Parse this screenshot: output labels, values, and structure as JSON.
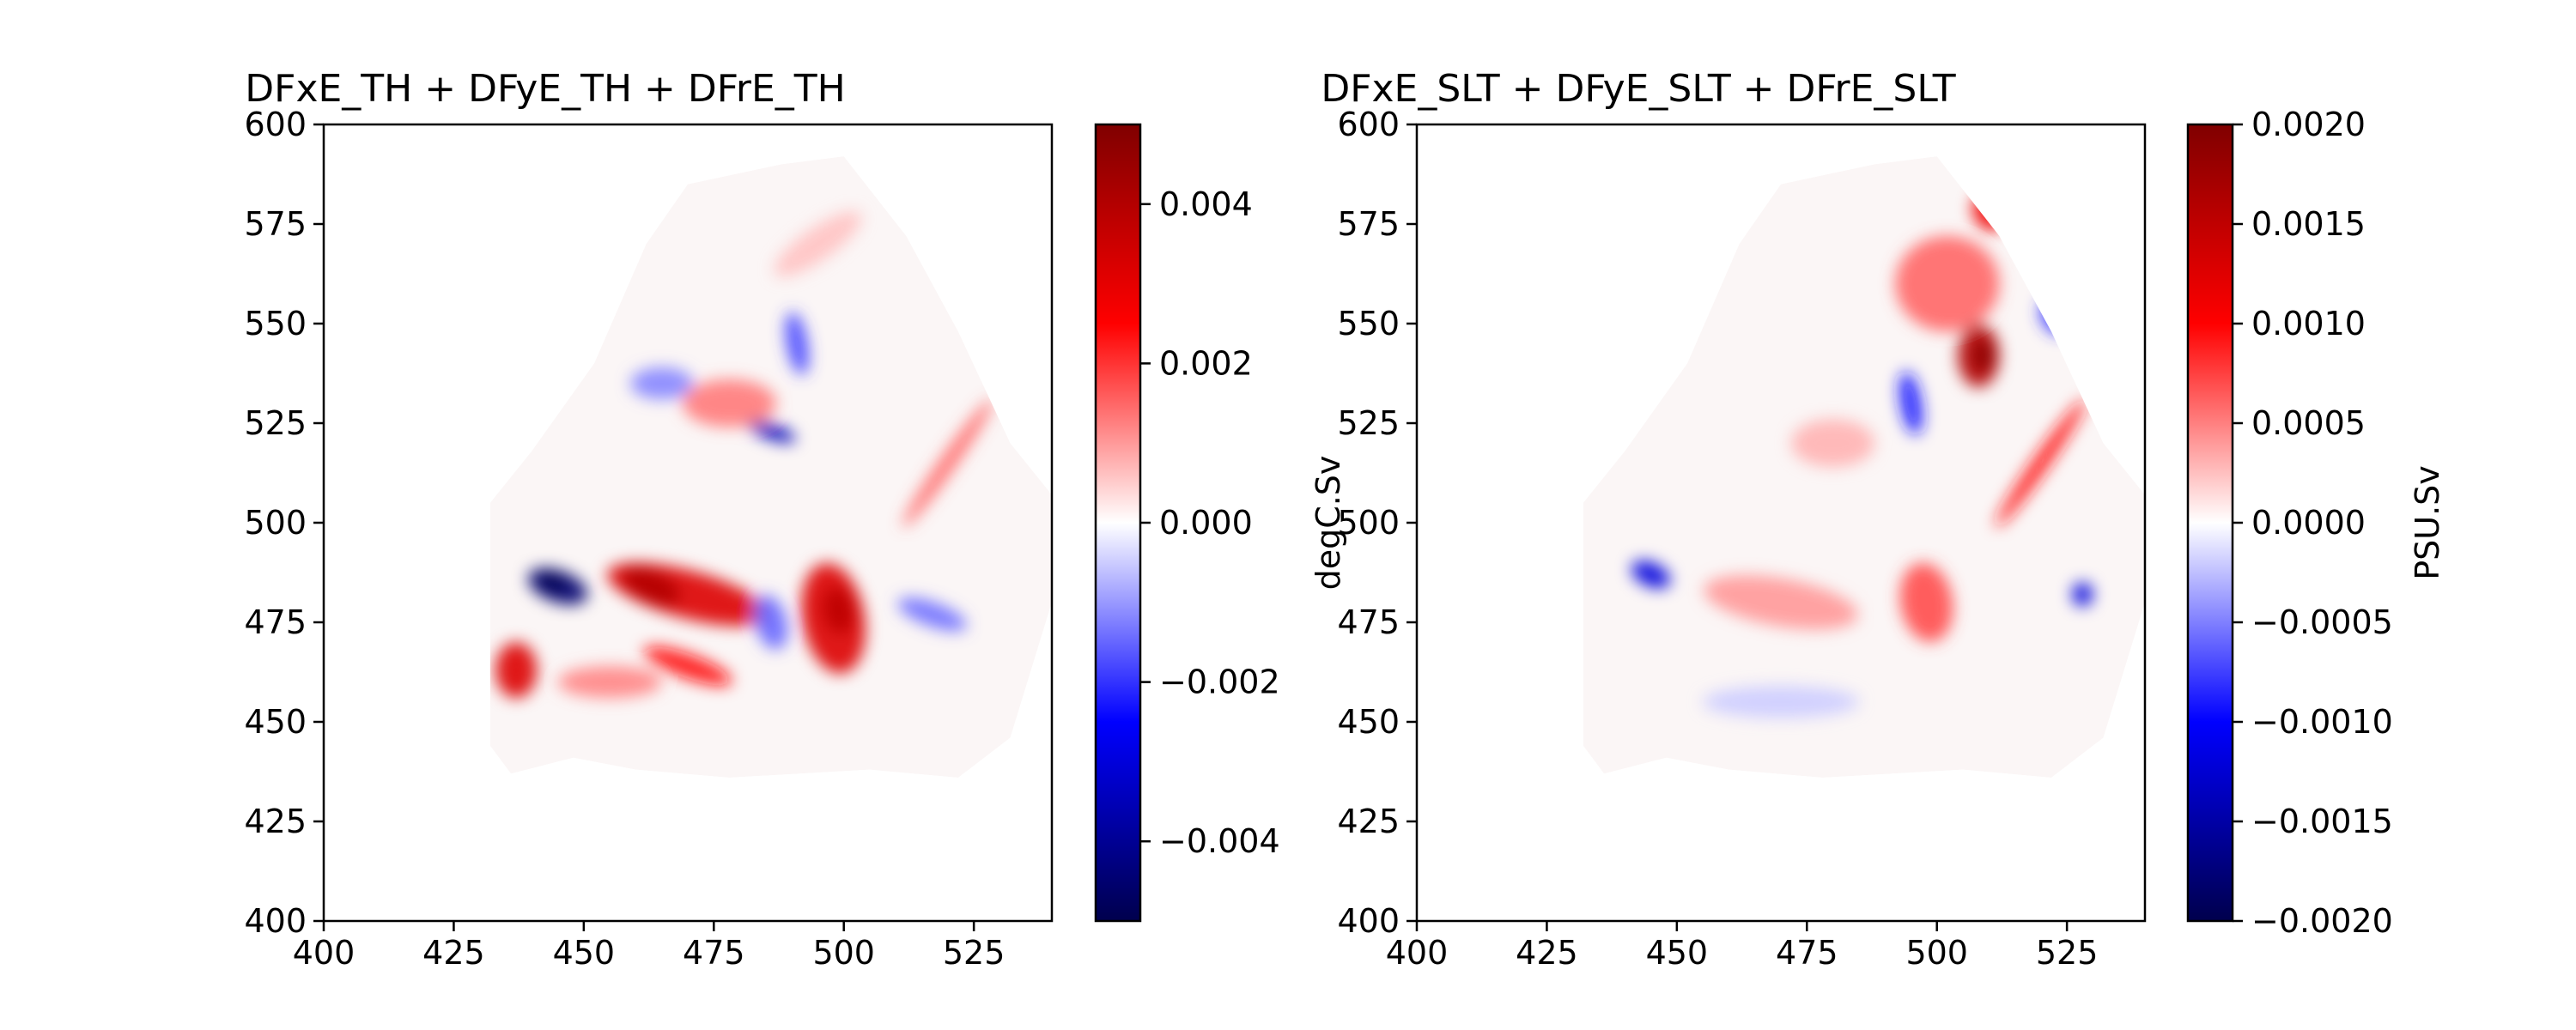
{
  "chart_data": [
    {
      "type": "heatmap",
      "title": "DFxE_TH + DFyE_TH + DFrE_TH",
      "xlim": [
        400,
        540
      ],
      "ylim": [
        400,
        600
      ],
      "xticks": [
        "400",
        "425",
        "450",
        "475",
        "500",
        "525"
      ],
      "yticks": [
        "400",
        "425",
        "450",
        "475",
        "500",
        "525",
        "550",
        "575",
        "600"
      ],
      "colormap": "seismic",
      "colorbar": {
        "label": "degC.Sv",
        "range": [
          -0.005,
          0.005
        ],
        "ticks": [
          "−0.004",
          "−0.002",
          "0.000",
          "0.002",
          "0.004"
        ],
        "tick_values": [
          -0.004,
          -0.002,
          0.0,
          0.002,
          0.004
        ]
      },
      "blobs": [
        {
          "x": 445,
          "y": 484,
          "rx": 6,
          "ry": 4,
          "rot": -20,
          "value": -0.0045
        },
        {
          "x": 444,
          "y": 485,
          "rx": 3,
          "ry": 2,
          "rot": -20,
          "value": -0.005
        },
        {
          "x": 470,
          "y": 482,
          "rx": 16,
          "ry": 6,
          "rot": -15,
          "value": 0.0032
        },
        {
          "x": 463,
          "y": 484,
          "rx": 6,
          "ry": 4,
          "rot": -25,
          "value": 0.004
        },
        {
          "x": 498,
          "y": 476,
          "rx": 6,
          "ry": 14,
          "rot": 10,
          "value": 0.0032
        },
        {
          "x": 499,
          "y": 478,
          "rx": 3,
          "ry": 6,
          "rot": 10,
          "value": 0.0038
        },
        {
          "x": 437,
          "y": 463,
          "rx": 4,
          "ry": 7,
          "rot": 0,
          "value": 0.0032
        },
        {
          "x": 470,
          "y": 464,
          "rx": 9,
          "ry": 3,
          "rot": -20,
          "value": 0.0024
        },
        {
          "x": 486,
          "y": 523,
          "rx": 5,
          "ry": 2,
          "rot": -20,
          "value": -0.0035
        },
        {
          "x": 491,
          "y": 545,
          "rx": 2,
          "ry": 8,
          "rot": 10,
          "value": -0.0018
        },
        {
          "x": 478,
          "y": 530,
          "rx": 9,
          "ry": 6,
          "rot": 0,
          "value": 0.0013
        },
        {
          "x": 465,
          "y": 535,
          "rx": 6,
          "ry": 4,
          "rot": 0,
          "value": -0.0012
        },
        {
          "x": 517,
          "y": 477,
          "rx": 7,
          "ry": 3,
          "rot": -20,
          "value": -0.0014
        },
        {
          "x": 486,
          "y": 475,
          "rx": 3,
          "ry": 7,
          "rot": 15,
          "value": -0.0015
        },
        {
          "x": 455,
          "y": 460,
          "rx": 10,
          "ry": 4,
          "rot": 0,
          "value": 0.0012
        },
        {
          "x": 520,
          "y": 515,
          "rx": 15,
          "ry": 2,
          "rot": 55,
          "value": 0.0015
        },
        {
          "x": 495,
          "y": 570,
          "rx": 10,
          "ry": 4,
          "rot": 35,
          "value": 0.0006
        }
      ]
    },
    {
      "type": "heatmap",
      "title": "DFxE_SLT + DFyE_SLT + DFrE_SLT",
      "xlim": [
        400,
        540
      ],
      "ylim": [
        400,
        600
      ],
      "xticks": [
        "400",
        "425",
        "450",
        "475",
        "500",
        "525"
      ],
      "yticks": [
        "400",
        "425",
        "450",
        "475",
        "500",
        "525",
        "550",
        "575",
        "600"
      ],
      "colormap": "seismic",
      "colorbar": {
        "label": "PSU.Sv",
        "range": [
          -0.002,
          0.002
        ],
        "ticks": [
          "−0.0020",
          "−0.0015",
          "−0.0010",
          "−0.0005",
          "0.0000",
          "0.0005",
          "0.0010",
          "0.0015",
          "0.0020"
        ],
        "tick_values": [
          -0.002,
          -0.0015,
          -0.001,
          -0.0005,
          0.0,
          0.0005,
          0.001,
          0.0015,
          0.002
        ]
      },
      "blobs": [
        {
          "x": 508,
          "y": 542,
          "rx": 4,
          "ry": 8,
          "rot": 0,
          "value": 0.0016
        },
        {
          "x": 509,
          "y": 542,
          "rx": 2,
          "ry": 4,
          "rot": 0,
          "value": 0.0019
        },
        {
          "x": 502,
          "y": 560,
          "rx": 10,
          "ry": 12,
          "rot": 0,
          "value": 0.0006
        },
        {
          "x": 510,
          "y": 578,
          "rx": 3,
          "ry": 5,
          "rot": 30,
          "value": 0.0011
        },
        {
          "x": 498,
          "y": 480,
          "rx": 5,
          "ry": 10,
          "rot": 10,
          "value": 0.0007
        },
        {
          "x": 445,
          "y": 487,
          "rx": 4,
          "ry": 3,
          "rot": -25,
          "value": -0.0012
        },
        {
          "x": 495,
          "y": 530,
          "rx": 2,
          "ry": 8,
          "rot": 10,
          "value": -0.0009
        },
        {
          "x": 523,
          "y": 552,
          "rx": 3,
          "ry": 5,
          "rot": 30,
          "value": -0.0008
        },
        {
          "x": 528,
          "y": 482,
          "rx": 2,
          "ry": 3,
          "rot": 0,
          "value": -0.0012
        },
        {
          "x": 520,
          "y": 515,
          "rx": 15,
          "ry": 2,
          "rot": 55,
          "value": 0.0009
        },
        {
          "x": 470,
          "y": 480,
          "rx": 15,
          "ry": 6,
          "rot": -10,
          "value": 0.0004
        },
        {
          "x": 470,
          "y": 455,
          "rx": 15,
          "ry": 4,
          "rot": 0,
          "value": -0.0002
        },
        {
          "x": 480,
          "y": 520,
          "rx": 8,
          "ry": 6,
          "rot": 0,
          "value": 0.0003
        }
      ]
    }
  ]
}
